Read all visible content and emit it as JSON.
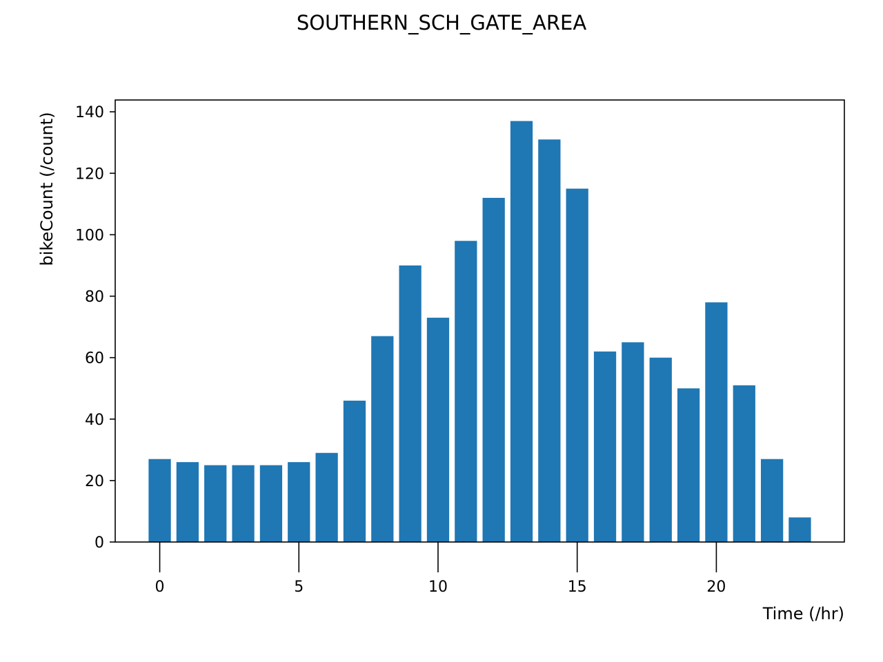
{
  "chart_data": {
    "type": "bar",
    "title": "SOUTHERN_SCH_GATE_AREA",
    "xlabel": "Time (/hr)",
    "ylabel": "bikeCount (/count)",
    "x": [
      0,
      1,
      2,
      3,
      4,
      5,
      6,
      7,
      8,
      9,
      10,
      11,
      12,
      13,
      14,
      15,
      16,
      17,
      18,
      19,
      20,
      21,
      22,
      23
    ],
    "values": [
      27,
      26,
      25,
      25,
      25,
      26,
      29,
      46,
      67,
      90,
      73,
      98,
      112,
      137,
      131,
      115,
      62,
      65,
      60,
      50,
      78,
      51,
      27,
      8
    ],
    "xticks": [
      0,
      5,
      10,
      15,
      20
    ],
    "yticks": [
      0,
      20,
      40,
      60,
      80,
      100,
      120,
      140
    ],
    "xlim": [
      -1.6,
      24.6
    ],
    "ylim": [
      0,
      143.85
    ],
    "bar_color": "#1f77b4",
    "grid": false,
    "legend": "none"
  }
}
